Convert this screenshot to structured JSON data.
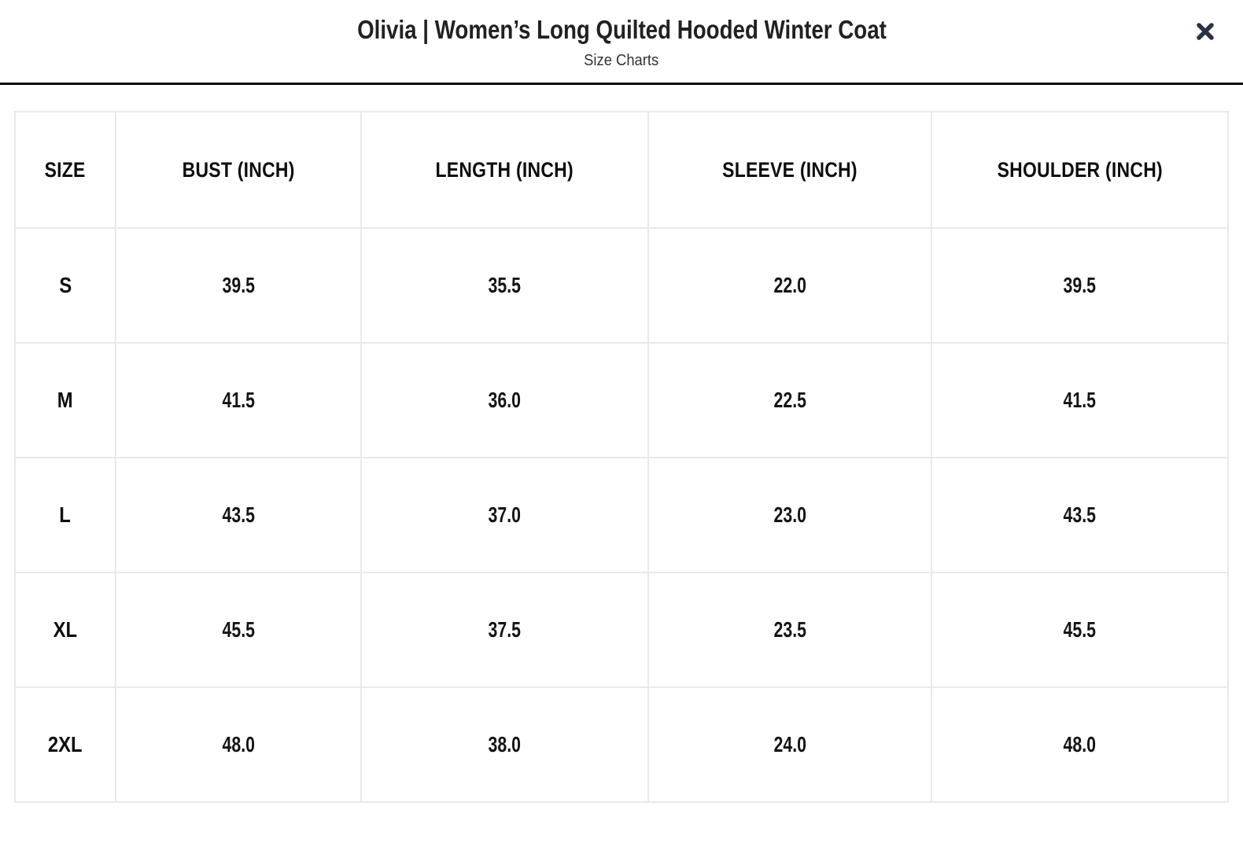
{
  "modal": {
    "title": "Olivia | Women’s Long Quilted Hooded Winter Coat",
    "subtitle": "Size Charts"
  },
  "icons": {
    "close": "x-mark"
  },
  "colors": {
    "title_text": "#212121",
    "subtitle_text": "#333333",
    "close_icon": "#273243",
    "header_divider": "#0b0b0b",
    "table_border": "#e9e9e9",
    "cell_text": "#0d0d0d",
    "background": "#ffffff"
  },
  "chart_data": {
    "type": "table",
    "title": "Size Charts",
    "columns": [
      "SIZE",
      "BUST (INCH)",
      "LENGTH (INCH)",
      "SLEEVE (INCH)",
      "SHOULDER (INCH)"
    ],
    "rows": [
      [
        "S",
        "39.5",
        "35.5",
        "22.0",
        "39.5"
      ],
      [
        "M",
        "41.5",
        "36.0",
        "22.5",
        "41.5"
      ],
      [
        "L",
        "43.5",
        "37.0",
        "23.0",
        "43.5"
      ],
      [
        "XL",
        "45.5",
        "37.5",
        "23.5",
        "45.5"
      ],
      [
        "2XL",
        "48.0",
        "38.0",
        "24.0",
        "48.0"
      ]
    ]
  }
}
